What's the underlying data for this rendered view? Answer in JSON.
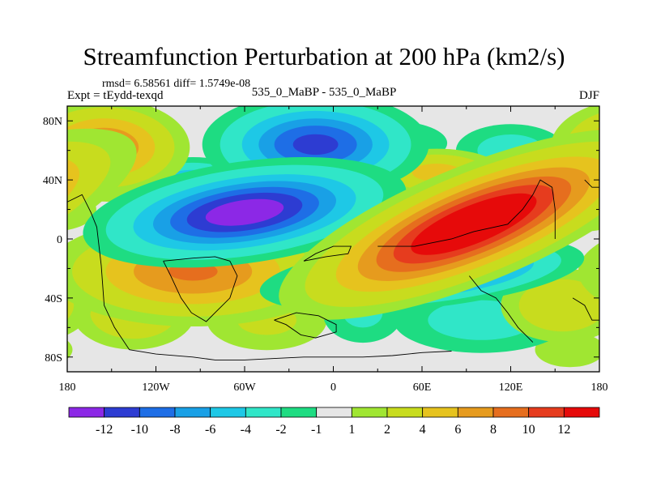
{
  "header": {
    "title": "Streamfunction Perturbation at 200 hPa (km2/s)",
    "stats": "rmsd= 6.58561 diff= 1.5749e-08",
    "expt": "Expt = tEydd-texqd",
    "subtitle": "535_0_MaBP - 535_0_MaBP",
    "season": "DJF"
  },
  "chart_data": {
    "type": "heatmap",
    "title": "Streamfunction Perturbation at 200 hPa (km2/s)",
    "xlabel": "",
    "ylabel": "",
    "xlim": [
      -180,
      180
    ],
    "ylim": [
      -90,
      90
    ],
    "x_ticks": [
      -180,
      -120,
      -60,
      0,
      60,
      120,
      180
    ],
    "x_tick_labels": [
      "180",
      "120W",
      "60W",
      "0",
      "60E",
      "120E",
      "180"
    ],
    "y_ticks": [
      80,
      40,
      0,
      -40,
      -80
    ],
    "y_tick_labels": [
      "80N",
      "40N",
      "0",
      "40S",
      "80S"
    ],
    "colorbar": {
      "labels": [
        "-12",
        "-10",
        "-8",
        "-6",
        "-4",
        "-2",
        "-1",
        "1",
        "2",
        "4",
        "6",
        "8",
        "10",
        "12"
      ],
      "bins": [
        {
          "range": "< -12",
          "color": "#8c28e6"
        },
        {
          "range": "-12 to -10",
          "color": "#2d3cd2"
        },
        {
          "range": "-10 to -8",
          "color": "#1e6ee6"
        },
        {
          "range": "-8 to -6",
          "color": "#19a0e6"
        },
        {
          "range": "-6 to -4",
          "color": "#1ec8e6"
        },
        {
          "range": "-4 to -2",
          "color": "#30e6c8"
        },
        {
          "range": "-2 to -1",
          "color": "#1edc82"
        },
        {
          "range": "-1 to 1",
          "color": "#e6e6e6"
        },
        {
          "range": "1 to 2",
          "color": "#a0e632"
        },
        {
          "range": "2 to 4",
          "color": "#c8dc1e"
        },
        {
          "range": "4 to 6",
          "color": "#e6c31e"
        },
        {
          "range": "6 to 8",
          "color": "#e69b1e"
        },
        {
          "range": "8 to 10",
          "color": "#e66e1e"
        },
        {
          "range": "10 to 12",
          "color": "#e63c1e"
        },
        {
          "range": "> 12",
          "color": "#e60a0a"
        }
      ]
    },
    "features": [
      {
        "lon": -155,
        "lat": 62,
        "amp": 8.5,
        "slon": 28,
        "slat": 16,
        "rot": 0
      },
      {
        "lon": -150,
        "lat": 40,
        "amp": 3,
        "slon": 25,
        "slat": 10,
        "rot": 0
      },
      {
        "lon": -95,
        "lat": 35,
        "amp": -8,
        "slon": 22,
        "slat": 10,
        "rot": 0
      },
      {
        "lon": -60,
        "lat": 18,
        "amp": -14,
        "slon": 48,
        "slat": 15,
        "rot": 8
      },
      {
        "lon": -12,
        "lat": 64,
        "amp": -11,
        "slon": 35,
        "slat": 16,
        "rot": 0
      },
      {
        "lon": -55,
        "lat": 70,
        "amp": -3,
        "slon": 20,
        "slat": 10,
        "rot": 0
      },
      {
        "lon": 40,
        "lat": 65,
        "amp": -3,
        "slon": 25,
        "slat": 10,
        "rot": 0
      },
      {
        "lon": 70,
        "lat": 45,
        "amp": 5,
        "slon": 25,
        "slat": 9,
        "rot": 0
      },
      {
        "lon": 0,
        "lat": 45,
        "amp": 3,
        "slon": 18,
        "slat": 8,
        "rot": 0
      },
      {
        "lon": 120,
        "lat": 60,
        "amp": -3,
        "slon": 25,
        "slat": 12,
        "rot": 0
      },
      {
        "lon": 95,
        "lat": 10,
        "amp": 16,
        "slon": 60,
        "slat": 17,
        "rot": 22
      },
      {
        "lon": -95,
        "lat": -22,
        "amp": 8.5,
        "slon": 48,
        "slat": 18,
        "rot": 0
      },
      {
        "lon": -135,
        "lat": -50,
        "amp": 4,
        "slon": 25,
        "slat": 15,
        "rot": 0
      },
      {
        "lon": -45,
        "lat": -55,
        "amp": 2.5,
        "slon": 30,
        "slat": 15,
        "rot": 0
      },
      {
        "lon": 20,
        "lat": -50,
        "amp": -2.5,
        "slon": 20,
        "slat": 15,
        "rot": 0
      },
      {
        "lon": 60,
        "lat": -24,
        "amp": -14,
        "slon": 48,
        "slat": 10,
        "rot": 6
      },
      {
        "lon": 110,
        "lat": -12,
        "amp": -8,
        "slon": 20,
        "slat": 8,
        "rot": 0
      },
      {
        "lon": 100,
        "lat": -55,
        "amp": -3,
        "slon": 40,
        "slat": 15,
        "rot": 0
      },
      {
        "lon": 155,
        "lat": -45,
        "amp": 4,
        "slon": 25,
        "slat": 15,
        "rot": 0
      },
      {
        "lon": 160,
        "lat": -75,
        "amp": 2,
        "slon": 20,
        "slat": 10,
        "rot": 0
      },
      {
        "lon": 170,
        "lat": 20,
        "amp": 3,
        "slon": 20,
        "slat": 10,
        "rot": 0
      }
    ],
    "coastlines": [
      [
        [
          -180,
          25
        ],
        [
          -170,
          30
        ],
        [
          -164,
          18
        ],
        [
          -160,
          8
        ],
        [
          -157,
          -18
        ],
        [
          -155,
          -45
        ],
        [
          -148,
          -60
        ],
        [
          -138,
          -75
        ],
        [
          -120,
          -78
        ],
        [
          -95,
          -80
        ],
        [
          -80,
          -82
        ],
        [
          -60,
          -82
        ],
        [
          -40,
          -81
        ],
        [
          -20,
          -80
        ],
        [
          0,
          -80
        ],
        [
          20,
          -80
        ],
        [
          40,
          -79
        ],
        [
          60,
          -77
        ],
        [
          80,
          -76
        ]
      ],
      [
        [
          -115,
          -15
        ],
        [
          -110,
          -25
        ],
        [
          -103,
          -40
        ],
        [
          -96,
          -50
        ],
        [
          -86,
          -56
        ],
        [
          -80,
          -50
        ],
        [
          -70,
          -40
        ],
        [
          -65,
          -25
        ],
        [
          -70,
          -15
        ],
        [
          -80,
          -12
        ],
        [
          -95,
          -13
        ],
        [
          -115,
          -15
        ]
      ],
      [
        [
          -40,
          -55
        ],
        [
          -32,
          -58
        ],
        [
          -22,
          -65
        ],
        [
          -12,
          -67
        ],
        [
          2,
          -63
        ],
        [
          2,
          -58
        ],
        [
          -10,
          -52
        ],
        [
          -25,
          -50
        ],
        [
          -40,
          -55
        ]
      ],
      [
        [
          -20,
          -15
        ],
        [
          -12,
          -10
        ],
        [
          0,
          -5
        ],
        [
          12,
          -5
        ],
        [
          10,
          -10
        ],
        [
          -5,
          -12
        ],
        [
          -20,
          -15
        ]
      ],
      [
        [
          30,
          -5
        ],
        [
          55,
          -5
        ],
        [
          80,
          0
        ],
        [
          95,
          5
        ],
        [
          118,
          10
        ],
        [
          128,
          20
        ],
        [
          135,
          30
        ],
        [
          140,
          40
        ],
        [
          148,
          35
        ],
        [
          150,
          20
        ],
        [
          150,
          0
        ]
      ],
      [
        [
          92,
          -25
        ],
        [
          100,
          -35
        ],
        [
          110,
          -40
        ],
        [
          118,
          -50
        ],
        [
          125,
          -60
        ],
        [
          135,
          -70
        ]
      ],
      [
        [
          162,
          -40
        ],
        [
          170,
          -45
        ],
        [
          175,
          -55
        ],
        [
          180,
          -55
        ]
      ],
      [
        [
          170,
          40
        ],
        [
          175,
          35
        ],
        [
          180,
          35
        ]
      ]
    ]
  }
}
